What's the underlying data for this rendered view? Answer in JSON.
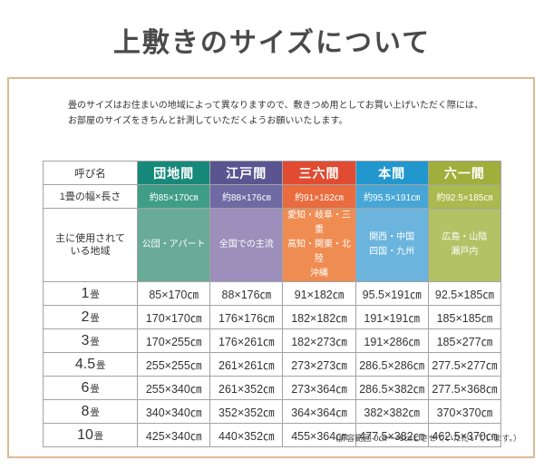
{
  "page": {
    "title": "上敷きのサイズについて"
  },
  "intro": {
    "line1": "畳のサイズはお住まいの地域によって異なりますので、敷きつめ用としてお買い上げいただく際には、",
    "line2": "お部屋のサイズをきちんと計測していただくようお願いいたします。"
  },
  "table": {
    "corner_label": "呼び名",
    "size_row_label": "1畳の幅×長さ",
    "region_row_label_line1": "主に使用されて",
    "region_row_label_line2": "いる地域",
    "columns": [
      {
        "name": "団地間",
        "size": "約85×170㎝",
        "region_lines": [
          "公団・アパート"
        ],
        "colors": {
          "header": "#17897b",
          "size": "#3f9d88",
          "region": "#69ab96"
        }
      },
      {
        "name": "江戸間",
        "size": "約88×176㎝",
        "region_lines": [
          "全国での主流"
        ],
        "colors": {
          "header": "#5a5591",
          "size": "#6f6aa3",
          "region": "#9c8fbb"
        }
      },
      {
        "name": "三六間",
        "size": "約91×182㎝",
        "region_lines": [
          "愛知・岐阜・三重",
          "高知・関東・北陸",
          "沖縄"
        ],
        "colors": {
          "header": "#e04b31",
          "size": "#e96b3e",
          "region": "#ef8c51"
        }
      },
      {
        "name": "本間",
        "size": "約95.5×191㎝",
        "region_lines": [
          "関西・中国",
          "四国・九州"
        ],
        "colors": {
          "header": "#2197cd",
          "size": "#48a6d6",
          "region": "#6bb4de"
        }
      },
      {
        "name": "六一間",
        "size": "約92.5×185㎝",
        "region_lines": [
          "広島・山陰",
          "瀬戸内"
        ],
        "colors": {
          "header": "#a0ae3b",
          "size": "#aaba4e",
          "region": "#b2c264"
        }
      }
    ],
    "rows": [
      {
        "label_num": "1",
        "label_unit": "畳",
        "values": [
          "85×170㎝",
          "88×176㎝",
          "91×182㎝",
          "95.5×191㎝",
          "92.5×185㎝"
        ]
      },
      {
        "label_num": "2",
        "label_unit": "畳",
        "values": [
          "170×170㎝",
          "176×176㎝",
          "182×182㎝",
          "191×191㎝",
          "185×185㎝"
        ]
      },
      {
        "label_num": "3",
        "label_unit": "畳",
        "values": [
          "170×255㎝",
          "176×261㎝",
          "182×273㎝",
          "191×286㎝",
          "185×277㎝"
        ]
      },
      {
        "label_num": "4.5",
        "label_unit": "畳",
        "values": [
          "255×255㎝",
          "261×261㎝",
          "273×273㎝",
          "286.5×286㎝",
          "277.5×277㎝"
        ]
      },
      {
        "label_num": "6",
        "label_unit": "畳",
        "values": [
          "255×340㎝",
          "261×352㎝",
          "273×364㎝",
          "286.5×382㎝",
          "277.5×368㎝"
        ]
      },
      {
        "label_num": "8",
        "label_unit": "畳",
        "values": [
          "340×340㎝",
          "352×352㎝",
          "364×364㎝",
          "382×382㎝",
          "370×370㎝"
        ]
      },
      {
        "label_num": "10",
        "label_unit": "畳",
        "values": [
          "425×340㎝",
          "440×352㎝",
          "455×364㎝",
          "477.5×382㎝",
          "462.5×370㎝"
        ]
      }
    ],
    "footnote": "（許容範囲-0㎝～+5㎝とさせていただいています。）"
  },
  "style": {
    "box_border": "#dcba96",
    "grid_line": "#a3a3a3",
    "title_color": "#4a4a4a",
    "text_color": "#333333"
  }
}
